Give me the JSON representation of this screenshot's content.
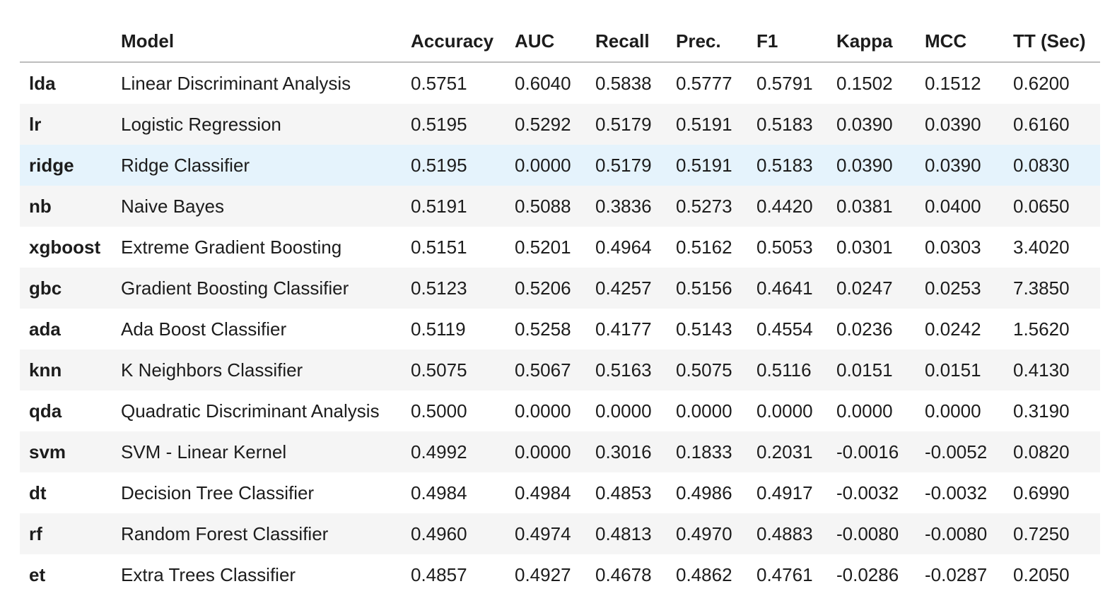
{
  "table": {
    "columns": [
      "",
      "Model",
      "Accuracy",
      "AUC",
      "Recall",
      "Prec.",
      "F1",
      "Kappa",
      "MCC",
      "TT (Sec)"
    ],
    "highlight_row_id": "ridge",
    "highlight_color": "#e5f3fc",
    "rows": [
      {
        "id": "lda",
        "model": "Linear Discriminant Analysis",
        "accuracy": "0.5751",
        "auc": "0.6040",
        "recall": "0.5838",
        "prec": "0.5777",
        "f1": "0.5791",
        "kappa": "0.1502",
        "mcc": "0.1512",
        "tt": "0.6200"
      },
      {
        "id": "lr",
        "model": "Logistic Regression",
        "accuracy": "0.5195",
        "auc": "0.5292",
        "recall": "0.5179",
        "prec": "0.5191",
        "f1": "0.5183",
        "kappa": "0.0390",
        "mcc": "0.0390",
        "tt": "0.6160"
      },
      {
        "id": "ridge",
        "model": "Ridge Classifier",
        "accuracy": "0.5195",
        "auc": "0.0000",
        "recall": "0.5179",
        "prec": "0.5191",
        "f1": "0.5183",
        "kappa": "0.0390",
        "mcc": "0.0390",
        "tt": "0.0830"
      },
      {
        "id": "nb",
        "model": "Naive Bayes",
        "accuracy": "0.5191",
        "auc": "0.5088",
        "recall": "0.3836",
        "prec": "0.5273",
        "f1": "0.4420",
        "kappa": "0.0381",
        "mcc": "0.0400",
        "tt": "0.0650"
      },
      {
        "id": "xgboost",
        "model": "Extreme Gradient Boosting",
        "accuracy": "0.5151",
        "auc": "0.5201",
        "recall": "0.4964",
        "prec": "0.5162",
        "f1": "0.5053",
        "kappa": "0.0301",
        "mcc": "0.0303",
        "tt": "3.4020"
      },
      {
        "id": "gbc",
        "model": "Gradient Boosting Classifier",
        "accuracy": "0.5123",
        "auc": "0.5206",
        "recall": "0.4257",
        "prec": "0.5156",
        "f1": "0.4641",
        "kappa": "0.0247",
        "mcc": "0.0253",
        "tt": "7.3850"
      },
      {
        "id": "ada",
        "model": "Ada Boost Classifier",
        "accuracy": "0.5119",
        "auc": "0.5258",
        "recall": "0.4177",
        "prec": "0.5143",
        "f1": "0.4554",
        "kappa": "0.0236",
        "mcc": "0.0242",
        "tt": "1.5620"
      },
      {
        "id": "knn",
        "model": "K Neighbors Classifier",
        "accuracy": "0.5075",
        "auc": "0.5067",
        "recall": "0.5163",
        "prec": "0.5075",
        "f1": "0.5116",
        "kappa": "0.0151",
        "mcc": "0.0151",
        "tt": "0.4130"
      },
      {
        "id": "qda",
        "model": "Quadratic Discriminant Analysis",
        "accuracy": "0.5000",
        "auc": "0.0000",
        "recall": "0.0000",
        "prec": "0.0000",
        "f1": "0.0000",
        "kappa": "0.0000",
        "mcc": "0.0000",
        "tt": "0.3190"
      },
      {
        "id": "svm",
        "model": "SVM - Linear Kernel",
        "accuracy": "0.4992",
        "auc": "0.0000",
        "recall": "0.3016",
        "prec": "0.1833",
        "f1": "0.2031",
        "kappa": "-0.0016",
        "mcc": "-0.0052",
        "tt": "0.0820"
      },
      {
        "id": "dt",
        "model": "Decision Tree Classifier",
        "accuracy": "0.4984",
        "auc": "0.4984",
        "recall": "0.4853",
        "prec": "0.4986",
        "f1": "0.4917",
        "kappa": "-0.0032",
        "mcc": "-0.0032",
        "tt": "0.6990"
      },
      {
        "id": "rf",
        "model": "Random Forest Classifier",
        "accuracy": "0.4960",
        "auc": "0.4974",
        "recall": "0.4813",
        "prec": "0.4970",
        "f1": "0.4883",
        "kappa": "-0.0080",
        "mcc": "-0.0080",
        "tt": "0.7250"
      },
      {
        "id": "et",
        "model": "Extra Trees Classifier",
        "accuracy": "0.4857",
        "auc": "0.4927",
        "recall": "0.4678",
        "prec": "0.4862",
        "f1": "0.4761",
        "kappa": "-0.0286",
        "mcc": "-0.0287",
        "tt": "0.2050"
      }
    ]
  }
}
